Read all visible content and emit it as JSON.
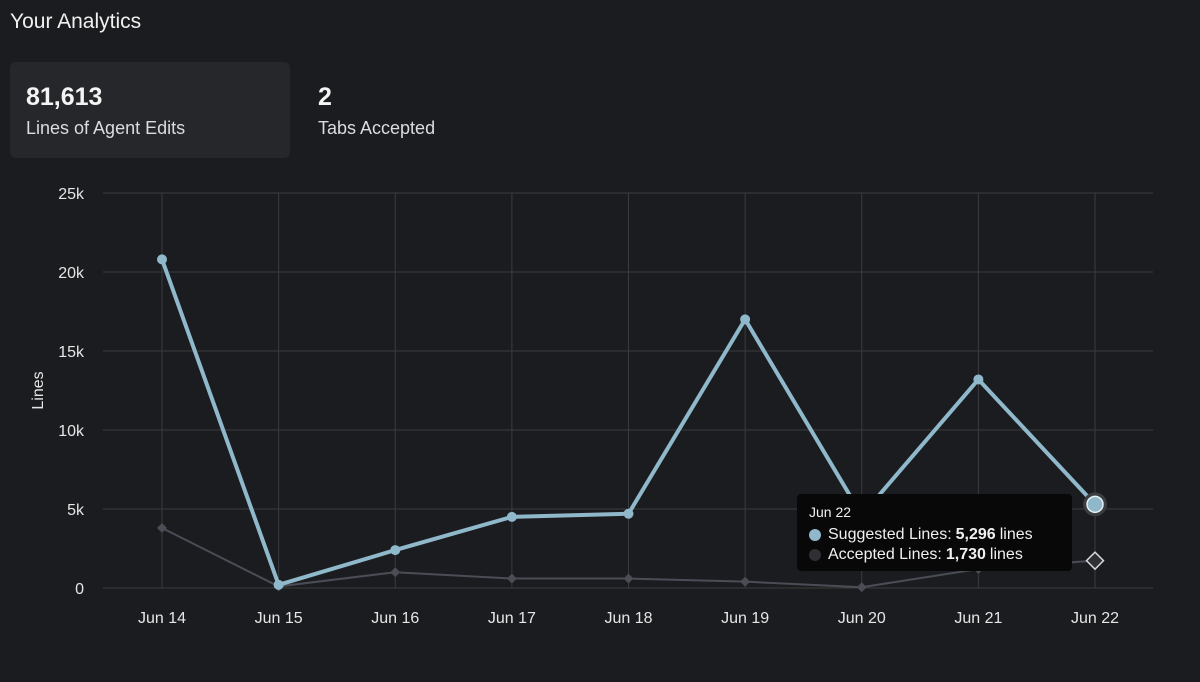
{
  "header": {
    "title": "Your Analytics"
  },
  "stats": [
    {
      "value": "81,613",
      "label": "Lines of Agent Edits"
    },
    {
      "value": "2",
      "label": "Tabs Accepted"
    }
  ],
  "colors": {
    "background": "#1b1c1f",
    "grid": "#3a3b3e",
    "suggested": "#8fb8cb",
    "accepted": "#4a4d55",
    "tooltip_bg": "#080809"
  },
  "chart_data": {
    "type": "line",
    "categories": [
      "Jun 14",
      "Jun 15",
      "Jun 16",
      "Jun 17",
      "Jun 18",
      "Jun 19",
      "Jun 20",
      "Jun 21",
      "Jun 22"
    ],
    "ylabel": "Lines",
    "ylim": [
      0,
      25000
    ],
    "yticks": [
      "0",
      "5k",
      "10k",
      "15k",
      "20k",
      "25k"
    ],
    "grid": true,
    "series": [
      {
        "name": "Suggested Lines",
        "values": [
          20800,
          200,
          2400,
          4500,
          4700,
          17000,
          4600,
          13200,
          5296
        ]
      },
      {
        "name": "Accepted Lines",
        "values": [
          3800,
          100,
          1000,
          600,
          600,
          400,
          50,
          1200,
          1730
        ]
      }
    ]
  },
  "tooltip": {
    "date": "Jun 22",
    "rows": [
      {
        "label": "Suggested Lines:",
        "value": "5,296",
        "unit": "lines"
      },
      {
        "label": "Accepted Lines:",
        "value": "1,730",
        "unit": "lines"
      }
    ]
  }
}
